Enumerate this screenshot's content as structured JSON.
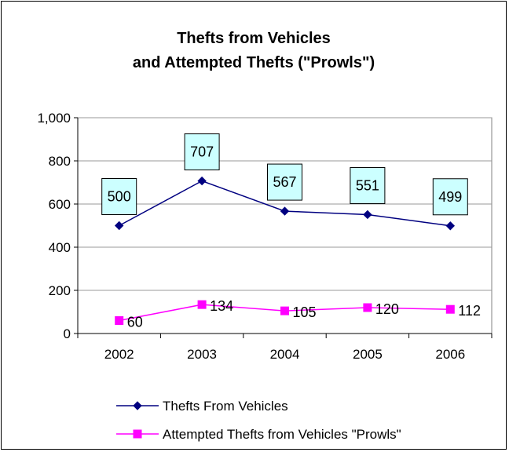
{
  "chart_data": {
    "type": "line",
    "title_lines": [
      "Thefts from Vehicles",
      "and Attempted Thefts (\"Prowls\")"
    ],
    "categories": [
      "2002",
      "2003",
      "2004",
      "2005",
      "2006"
    ],
    "ylim": [
      0,
      1000
    ],
    "y_ticks": [
      {
        "value": 0,
        "label": "0"
      },
      {
        "value": 200,
        "label": "200"
      },
      {
        "value": 400,
        "label": "400"
      },
      {
        "value": 600,
        "label": "600"
      },
      {
        "value": 800,
        "label": "800"
      },
      {
        "value": 1000,
        "label": "1,000"
      }
    ],
    "grid": true,
    "legend_position": "bottom",
    "series": [
      {
        "name": "Thefts From Vehicles",
        "values": [
          500,
          707,
          567,
          551,
          499
        ],
        "labels": [
          "500",
          "707",
          "567",
          "551",
          "499"
        ],
        "color": "#000080",
        "marker": "diamond",
        "label_style": "boxed"
      },
      {
        "name": "Attempted Thefts from Vehicles \"Prowls\"",
        "values": [
          60,
          134,
          105,
          120,
          112
        ],
        "labels": [
          "60",
          "134",
          "105",
          "120",
          "112"
        ],
        "color": "#ff00ff",
        "marker": "square",
        "label_style": "plain"
      }
    ],
    "label_box_fill": "#ccffff",
    "plot_background": "#ffffff",
    "gridline_color": "#999999"
  }
}
